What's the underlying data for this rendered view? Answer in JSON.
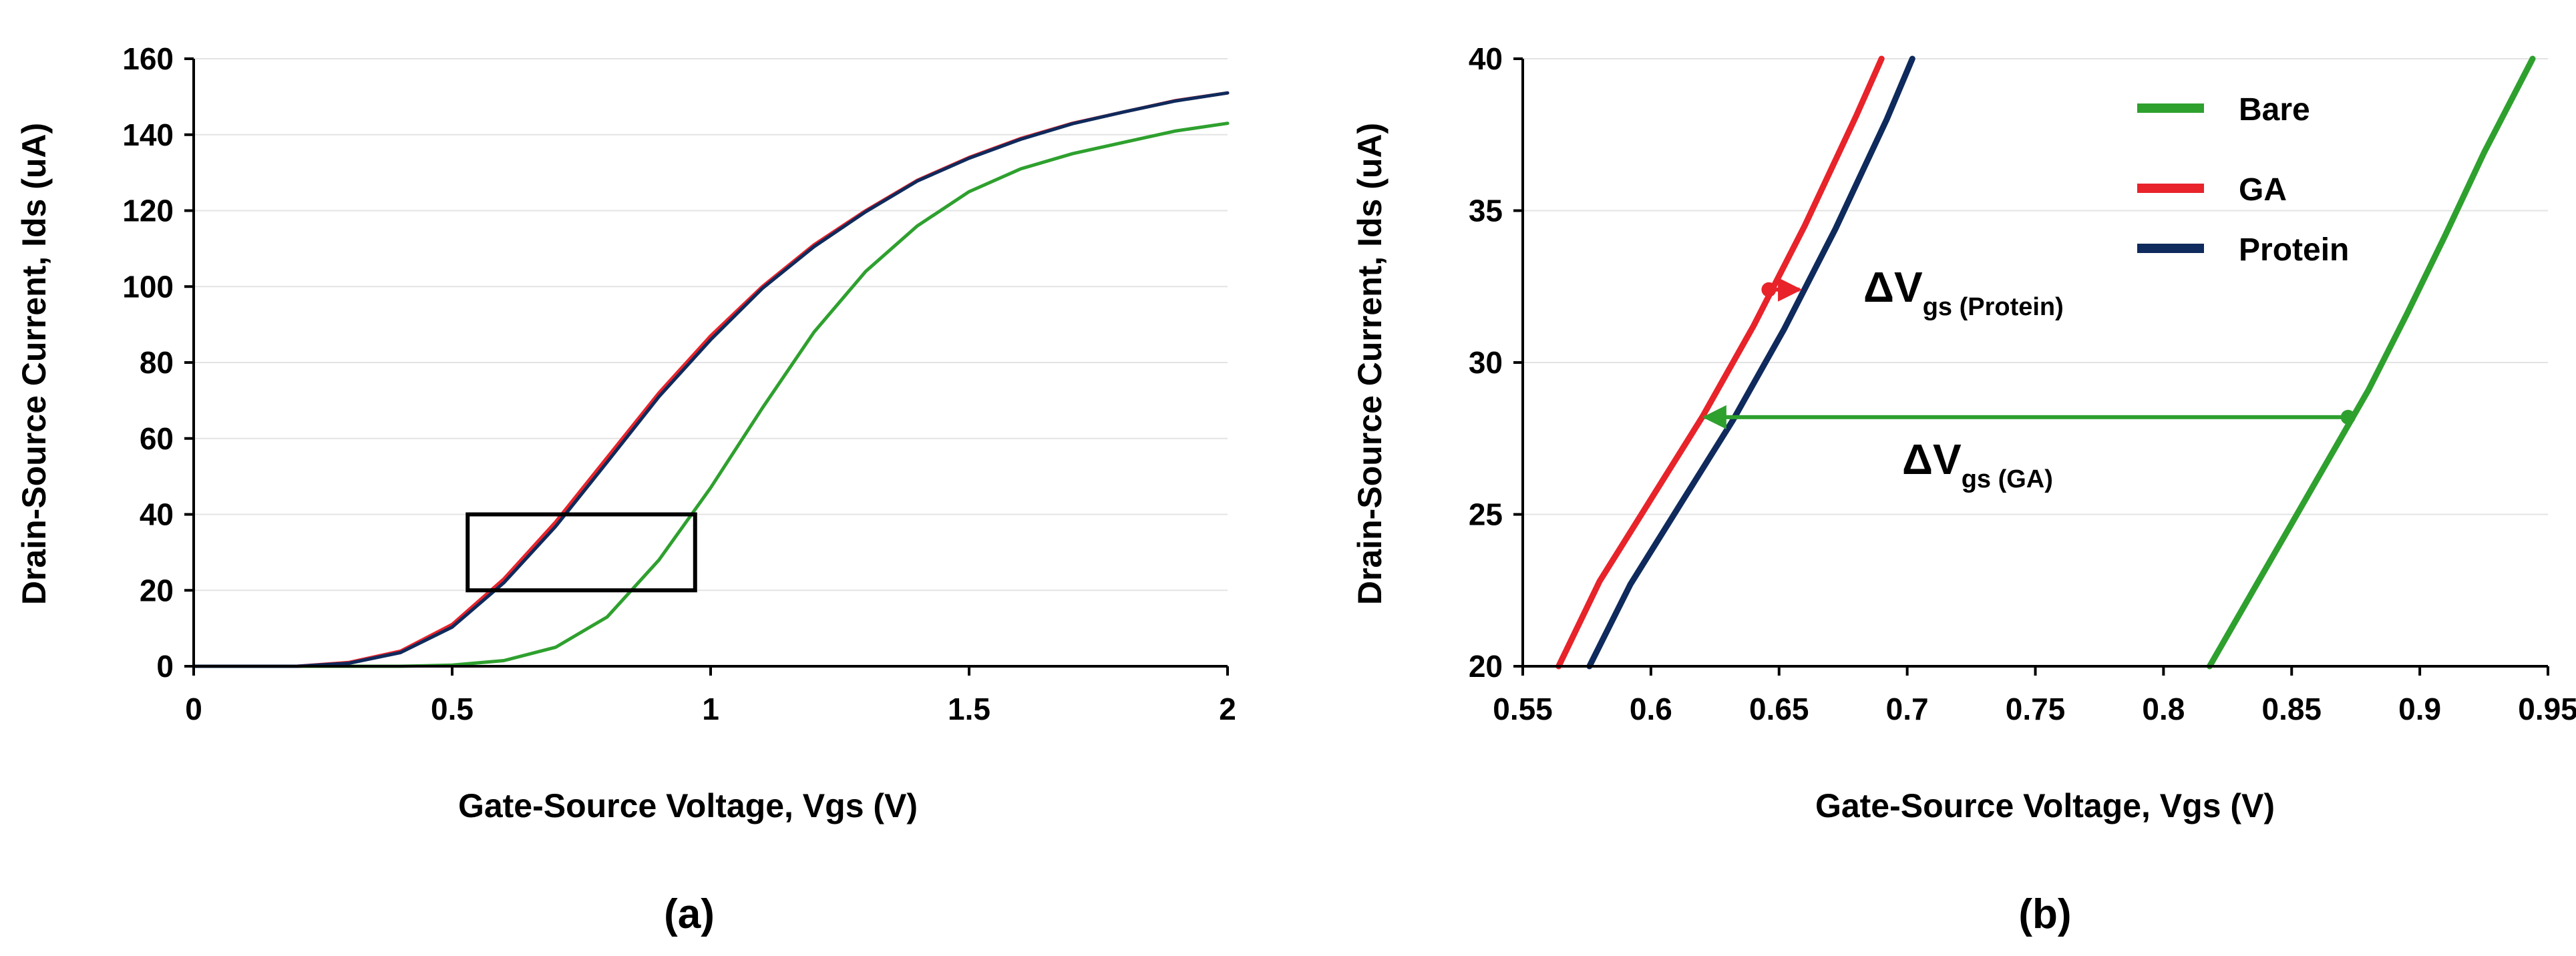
{
  "chart_data": [
    {
      "type": "line",
      "panel": "a",
      "panel_label": "(a)",
      "xlabel": "Gate-Source Voltage, Vgs (V)",
      "ylabel": "Drain-Source Current, Ids (uA)",
      "xlim": [
        0,
        2
      ],
      "ylim": [
        0,
        160
      ],
      "xticks": [
        0,
        0.5,
        1,
        1.5,
        2
      ],
      "xtick_labels": [
        "0",
        "0.5",
        "1",
        "1.5",
        "2"
      ],
      "yticks": [
        0,
        20,
        40,
        60,
        80,
        100,
        120,
        140,
        160
      ],
      "ytick_labels": [
        "0",
        "20",
        "40",
        "60",
        "80",
        "100",
        "120",
        "140",
        "160"
      ],
      "grid": "horizontal",
      "highlight_box": {
        "x": [
          0.53,
          0.97
        ],
        "y": [
          20,
          40
        ]
      },
      "series": [
        {
          "name": "Bare",
          "color": "#2ea02e",
          "x": [
            0,
            0.3,
            0.4,
            0.5,
            0.6,
            0.7,
            0.8,
            0.9,
            1.0,
            1.1,
            1.2,
            1.3,
            1.4,
            1.5,
            1.6,
            1.7,
            1.8,
            1.9,
            2.0
          ],
          "y": [
            0,
            0,
            0,
            0.3,
            1.5,
            5,
            13,
            28,
            47,
            68,
            88,
            104,
            116,
            125,
            131,
            135,
            138,
            141,
            143
          ]
        },
        {
          "name": "GA",
          "color": "#e8232a",
          "x": [
            0,
            0.2,
            0.3,
            0.4,
            0.5,
            0.6,
            0.7,
            0.8,
            0.9,
            1.0,
            1.1,
            1.2,
            1.3,
            1.4,
            1.5,
            1.6,
            1.7,
            1.8,
            1.9,
            2.0
          ],
          "y": [
            0,
            0,
            1,
            4,
            11,
            23,
            38,
            55,
            72,
            87,
            100,
            111,
            120,
            128,
            134,
            139,
            143,
            146,
            149,
            151
          ]
        },
        {
          "name": "Protein",
          "color": "#0f2a5c",
          "x": [
            0,
            0.2,
            0.3,
            0.4,
            0.5,
            0.6,
            0.7,
            0.8,
            0.9,
            1.0,
            1.1,
            1.2,
            1.3,
            1.4,
            1.5,
            1.6,
            1.7,
            1.8,
            1.9,
            2.0
          ],
          "y": [
            0,
            0,
            0.8,
            3.6,
            10.3,
            22,
            36.8,
            53.8,
            71,
            86,
            99.5,
            110.5,
            119.7,
            127.8,
            133.8,
            138.8,
            142.9,
            146,
            148.9,
            151
          ]
        }
      ]
    },
    {
      "type": "line",
      "panel": "b",
      "panel_label": "(b)",
      "xlabel": "Gate-Source Voltage, Vgs (V)",
      "ylabel": "Drain-Source Current, Ids (uA)",
      "xlim": [
        0.55,
        0.95
      ],
      "ylim": [
        20,
        40
      ],
      "xticks": [
        0.55,
        0.6,
        0.65,
        0.7,
        0.75,
        0.8,
        0.85,
        0.9,
        0.95
      ],
      "xtick_labels": [
        "0.55",
        "0.6",
        "0.65",
        "0.7",
        "0.75",
        "0.8",
        "0.85",
        "0.9",
        "0.95"
      ],
      "yticks": [
        20,
        25,
        30,
        35,
        40
      ],
      "ytick_labels": [
        "20",
        "25",
        "30",
        "35",
        "40"
      ],
      "grid": "horizontal",
      "legend": {
        "position": "top-right",
        "entries": [
          "Bare",
          "GA",
          "Protein"
        ]
      },
      "series": [
        {
          "name": "Bare",
          "color": "#2ea02e",
          "x": [
            0.818,
            0.835,
            0.85,
            0.865,
            0.88,
            0.895,
            0.91,
            0.925,
            0.944
          ],
          "y": [
            20,
            22.5,
            24.7,
            26.9,
            29.1,
            31.6,
            34.2,
            36.9,
            40
          ]
        },
        {
          "name": "GA",
          "color": "#e8232a",
          "x": [
            0.564,
            0.58,
            0.6,
            0.62,
            0.64,
            0.66,
            0.68,
            0.69
          ],
          "y": [
            20,
            22.8,
            25.5,
            28.2,
            31.2,
            34.5,
            38.1,
            40
          ]
        },
        {
          "name": "Protein",
          "color": "#0f2a5c",
          "x": [
            0.576,
            0.592,
            0.612,
            0.632,
            0.652,
            0.672,
            0.692,
            0.702
          ],
          "y": [
            20,
            22.7,
            25.4,
            28.1,
            31.1,
            34.4,
            38,
            40
          ]
        }
      ],
      "annotations": [
        {
          "id": "protein-shift",
          "main": "ΔV",
          "sub": "gs (Protein)",
          "x_from": 0.646,
          "x_to": 0.658,
          "y": 32.4,
          "color": "#e8232a"
        },
        {
          "id": "ga-shift",
          "main": "ΔV",
          "sub": "gs (GA)",
          "x_from": 0.872,
          "x_to": 0.621,
          "y": 28.2,
          "color": "#2ea02e"
        }
      ]
    }
  ]
}
